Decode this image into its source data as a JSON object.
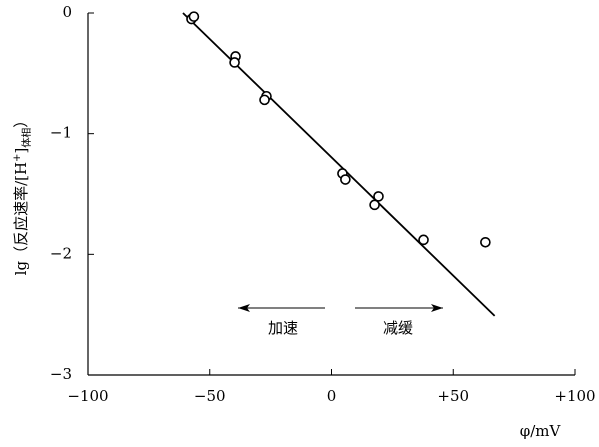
{
  "chart_data": {
    "type": "scatter",
    "ylabel": [
      "lg（反应速率/[H",
      "+",
      "]",
      "体相",
      "）"
    ],
    "xlabel": "φ/mV",
    "xlim": [
      -100,
      100
    ],
    "xticks": [
      {
        "value": -100,
        "label": "−100"
      },
      {
        "value": -50,
        "label": "−50"
      },
      0,
      {
        "value": 50,
        "label": "+50"
      },
      {
        "value": 100,
        "label": "+100"
      }
    ],
    "ylim": [
      -3,
      0
    ],
    "yticks": [
      0,
      {
        "value": -1,
        "label": "−1"
      },
      {
        "value": -2,
        "label": "−2"
      },
      {
        "value": -3,
        "label": "−3"
      }
    ],
    "color": "#000000",
    "series": [
      {
        "x": [
          -57.5,
          -56.5,
          -39.4,
          -39.8,
          -26.7,
          -27.5,
          4.5,
          5.7,
          19.3,
          17.7,
          37.8,
          63.2
        ],
        "values": [
          -0.05,
          -0.03,
          -0.36,
          -0.41,
          -0.69,
          -0.72,
          -1.33,
          -1.38,
          -1.52,
          -1.59,
          -1.88,
          -1.9
        ]
      }
    ],
    "fit_line": {
      "x": [
        -61,
        67
      ],
      "values": [
        0,
        -2.51
      ]
    },
    "annotations": [
      "加速",
      "减缓"
    ]
  }
}
